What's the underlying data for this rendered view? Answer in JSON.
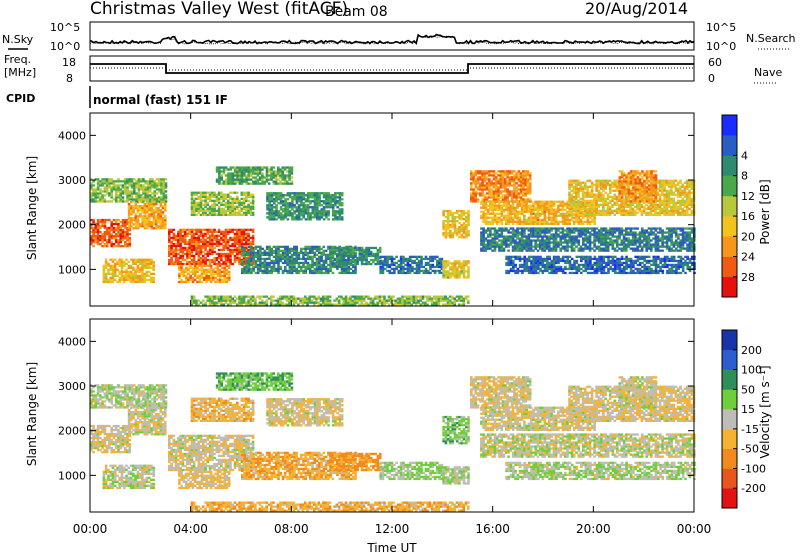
{
  "header": {
    "title": "Christmas Valley West (fitACF)",
    "beam": "Beam 08",
    "date": "20/Aug/2014"
  },
  "labels": {
    "nsky": "N.Sky",
    "nsearch": "N.Search",
    "freq_line1": "Freq.",
    "freq_line2": "[MHz]",
    "nave": "Nave",
    "cpid": "CPID",
    "mode": "normal (fast) 151 IF"
  },
  "noise_axis": {
    "left_ticks": [
      "10^5",
      "10^0"
    ],
    "right_ticks": [
      "10^5",
      "10^0"
    ]
  },
  "freq_axis": {
    "left_ticks": [
      "18",
      "8"
    ],
    "right_ticks": [
      "60",
      "0"
    ]
  },
  "chart_data": [
    {
      "type": "heatmap",
      "name": "power",
      "ylabel": "Slant Range [km]",
      "ylim": [
        180,
        4500
      ],
      "yticks": [
        1000,
        2000,
        3000,
        4000
      ],
      "xlim": [
        0,
        24
      ],
      "colorbar": {
        "label": "Power [dB]",
        "ticks": [
          "4",
          "8",
          "12",
          "16",
          "20",
          "24",
          "28"
        ],
        "colors": [
          "#1a2cff",
          "#2a5dc4",
          "#2f8a6e",
          "#48a84a",
          "#b8c83a",
          "#f2c21e",
          "#f7961c",
          "#f05a12",
          "#e6110f"
        ]
      }
    },
    {
      "type": "heatmap",
      "name": "velocity",
      "ylabel": "Slant Range [km]",
      "ylim": [
        180,
        4500
      ],
      "yticks": [
        1000,
        2000,
        3000,
        4000
      ],
      "xlim": [
        0,
        24
      ],
      "colorbar": {
        "label": "Velocity [m s⁻¹]",
        "ticks": [
          "200",
          "100",
          "50",
          "15",
          "-15",
          "-50",
          "-100",
          "-200"
        ],
        "colors": [
          "#1b33a8",
          "#2c5ed0",
          "#2e8f5a",
          "#6fcf3a",
          "#bdbdb5",
          "#f6b233",
          "#f28a1e",
          "#e9561d",
          "#e41313"
        ]
      }
    }
  ],
  "time_axis": {
    "label": "Time UT",
    "ticks": [
      "00:00",
      "04:00",
      "08:00",
      "12:00",
      "16:00",
      "20:00",
      "00:00"
    ]
  },
  "echo_bands": [
    {
      "t0": 0.0,
      "t1": 1.6,
      "r0": 1500,
      "r1": 2100,
      "p": 26,
      "v": -10
    },
    {
      "t0": 1.5,
      "t1": 3.0,
      "r0": 1900,
      "r1": 2600,
      "p": 22,
      "v": -5
    },
    {
      "t0": 0.5,
      "t1": 2.5,
      "r0": 700,
      "r1": 1200,
      "p": 20,
      "v": 5
    },
    {
      "t0": 0.0,
      "t1": 3.0,
      "r0": 2500,
      "r1": 3000,
      "p": 14,
      "v": 10
    },
    {
      "t0": 3.1,
      "t1": 6.5,
      "r0": 1100,
      "r1": 1900,
      "p": 27,
      "v": -8
    },
    {
      "t0": 3.5,
      "t1": 5.5,
      "r0": 700,
      "r1": 1100,
      "p": 22,
      "v": -20
    },
    {
      "t0": 4.0,
      "t1": 6.5,
      "r0": 2200,
      "r1": 2700,
      "p": 15,
      "v": -30
    },
    {
      "t0": 5.0,
      "t1": 8.0,
      "r0": 2900,
      "r1": 3300,
      "p": 12,
      "v": 40
    },
    {
      "t0": 6.0,
      "t1": 10.5,
      "r0": 900,
      "r1": 1500,
      "p": 9,
      "v": -40
    },
    {
      "t0": 7.0,
      "t1": 10.0,
      "r0": 2100,
      "r1": 2700,
      "p": 10,
      "v": -10
    },
    {
      "t0": 9.5,
      "t1": 11.5,
      "r0": 1100,
      "r1": 1500,
      "p": 10,
      "v": -60
    },
    {
      "t0": 11.5,
      "t1": 14.0,
      "r0": 900,
      "r1": 1300,
      "p": 7,
      "v": 20
    },
    {
      "t0": 14.0,
      "t1": 15.0,
      "r0": 800,
      "r1": 1200,
      "p": 18,
      "v": 10
    },
    {
      "t0": 14.0,
      "t1": 15.0,
      "r0": 1700,
      "r1": 2300,
      "p": 20,
      "v": 30
    },
    {
      "t0": 15.1,
      "t1": 17.5,
      "r0": 2500,
      "r1": 3200,
      "p": 24,
      "v": -10
    },
    {
      "t0": 15.5,
      "t1": 20.0,
      "r0": 2000,
      "r1": 2500,
      "p": 21,
      "v": -8
    },
    {
      "t0": 19.0,
      "t1": 24.0,
      "r0": 2200,
      "r1": 3000,
      "p": 19,
      "v": -12
    },
    {
      "t0": 15.5,
      "t1": 24.0,
      "r0": 1400,
      "r1": 1900,
      "p": 8,
      "v": 0
    },
    {
      "t0": 16.5,
      "t1": 24.0,
      "r0": 900,
      "r1": 1300,
      "p": 6,
      "v": 10
    },
    {
      "t0": 21.0,
      "t1": 22.5,
      "r0": 2500,
      "r1": 3200,
      "p": 23,
      "v": -5
    },
    {
      "t0": 4.0,
      "t1": 15.0,
      "r0": 190,
      "r1": 400,
      "p": 14,
      "v": -40
    }
  ]
}
